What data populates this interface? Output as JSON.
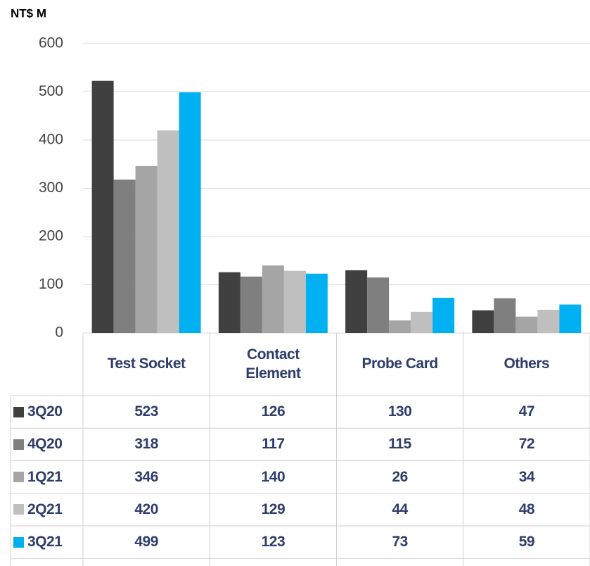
{
  "chart_data": {
    "type": "bar",
    "y_axis_label": "NT$ M",
    "categories": [
      "Test Socket",
      "Contact Element",
      "Probe Card",
      "Others"
    ],
    "series": [
      {
        "name": "3Q20",
        "color": "#404040",
        "values": [
          523,
          126,
          130,
          47
        ]
      },
      {
        "name": "4Q20",
        "color": "#7f7f7f",
        "values": [
          318,
          117,
          115,
          72
        ]
      },
      {
        "name": "1Q21",
        "color": "#a5a5a5",
        "values": [
          346,
          140,
          26,
          34
        ]
      },
      {
        "name": "2Q21",
        "color": "#bfbfbf",
        "values": [
          420,
          129,
          44,
          48
        ]
      },
      {
        "name": "3Q21",
        "color": "#00b0f0",
        "values": [
          499,
          123,
          73,
          59
        ]
      }
    ],
    "ylim": [
      0,
      600
    ],
    "yticks": [
      0,
      100,
      200,
      300,
      400,
      500,
      600
    ],
    "grid": true
  }
}
